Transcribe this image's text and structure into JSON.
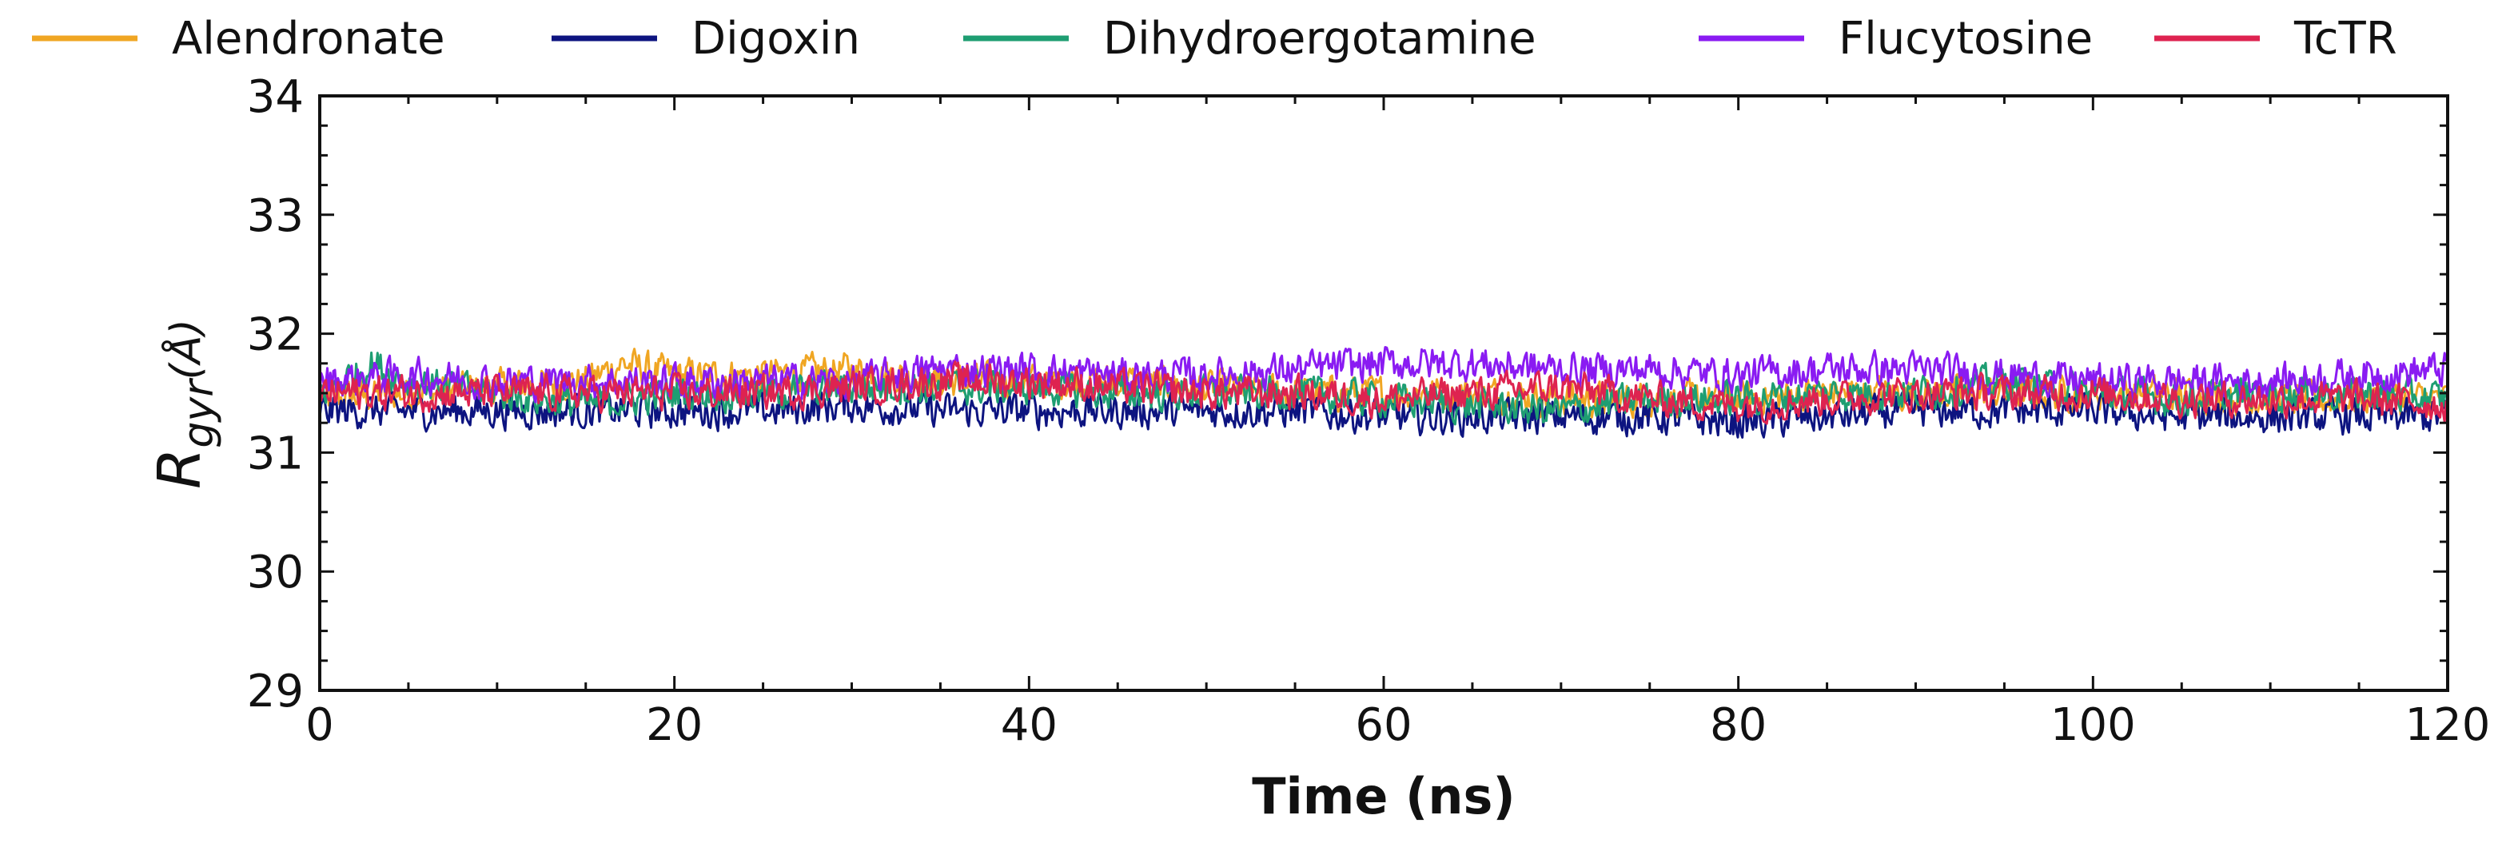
{
  "chart_data": {
    "type": "line",
    "title": "",
    "xlabel": "Time (ns)",
    "ylabel": {
      "symbol": "R",
      "subscript": "gyr",
      "unit": "(Å)"
    },
    "xlim": [
      0,
      120
    ],
    "ylim": [
      29,
      34
    ],
    "xticks": [
      0,
      20,
      40,
      60,
      80,
      100,
      120
    ],
    "yticks": [
      29,
      30,
      31,
      32,
      33,
      34
    ],
    "xtick_labels": [
      "0",
      "20",
      "40",
      "60",
      "80",
      "100",
      "120"
    ],
    "ytick_labels": [
      "29",
      "30",
      "31",
      "32",
      "33",
      "34"
    ],
    "legend_position": "top",
    "series": [
      {
        "name": "Alendronate",
        "color": "#F0A623",
        "x": [
          0,
          5,
          10,
          15,
          17,
          20,
          25,
          30,
          35,
          40,
          45,
          50,
          55,
          60,
          65,
          70,
          75,
          80,
          85,
          90,
          95,
          100,
          105,
          110,
          115,
          120
        ],
        "values": [
          31.45,
          31.5,
          31.55,
          31.6,
          31.75,
          31.65,
          31.65,
          31.7,
          31.6,
          31.6,
          31.6,
          31.55,
          31.5,
          31.5,
          31.5,
          31.45,
          31.45,
          31.45,
          31.5,
          31.5,
          31.5,
          31.5,
          31.5,
          31.45,
          31.45,
          31.45
        ]
      },
      {
        "name": "Digoxin",
        "color": "#0D1480",
        "x": [
          0,
          5,
          10,
          15,
          20,
          25,
          30,
          35,
          40,
          45,
          50,
          55,
          60,
          65,
          70,
          75,
          80,
          85,
          90,
          95,
          100,
          105,
          110,
          115,
          120
        ],
        "values": [
          31.35,
          31.35,
          31.35,
          31.35,
          31.35,
          31.35,
          31.4,
          31.35,
          31.35,
          31.35,
          31.35,
          31.35,
          31.3,
          31.3,
          31.3,
          31.3,
          31.25,
          31.3,
          31.35,
          31.35,
          31.35,
          31.3,
          31.3,
          31.3,
          31.3
        ]
      },
      {
        "name": "Dihydroergotamine",
        "color": "#1E9E72",
        "x": [
          0,
          3,
          5,
          10,
          15,
          20,
          25,
          30,
          35,
          40,
          45,
          50,
          55,
          60,
          65,
          70,
          75,
          80,
          85,
          90,
          95,
          100,
          105,
          110,
          115,
          120
        ],
        "values": [
          31.5,
          31.75,
          31.6,
          31.5,
          31.4,
          31.5,
          31.5,
          31.55,
          31.55,
          31.55,
          31.5,
          31.5,
          31.5,
          31.45,
          31.4,
          31.35,
          31.45,
          31.45,
          31.5,
          31.5,
          31.6,
          31.5,
          31.45,
          31.5,
          31.5,
          31.45
        ]
      },
      {
        "name": "Flucytosine",
        "color": "#8A1BF2",
        "x": [
          0,
          5,
          10,
          15,
          20,
          25,
          30,
          35,
          40,
          45,
          50,
          55,
          60,
          65,
          70,
          75,
          80,
          85,
          90,
          95,
          100,
          105,
          110,
          115,
          120
        ],
        "values": [
          31.6,
          31.65,
          31.6,
          31.6,
          31.6,
          31.6,
          31.6,
          31.7,
          31.7,
          31.65,
          31.65,
          31.7,
          31.75,
          31.75,
          31.7,
          31.7,
          31.65,
          31.7,
          31.7,
          31.65,
          31.6,
          31.6,
          31.6,
          31.65,
          31.7
        ]
      },
      {
        "name": "TcTR",
        "color": "#DE2350",
        "x": [
          0,
          5,
          10,
          15,
          20,
          25,
          30,
          35,
          40,
          45,
          50,
          55,
          60,
          65,
          70,
          75,
          80,
          85,
          90,
          95,
          100,
          105,
          110,
          115,
          120
        ],
        "values": [
          31.5,
          31.5,
          31.5,
          31.5,
          31.5,
          31.5,
          31.55,
          31.6,
          31.6,
          31.55,
          31.5,
          31.5,
          31.45,
          31.5,
          31.55,
          31.45,
          31.4,
          31.45,
          31.5,
          31.5,
          31.5,
          31.45,
          31.45,
          31.45,
          31.4
        ]
      }
    ]
  }
}
